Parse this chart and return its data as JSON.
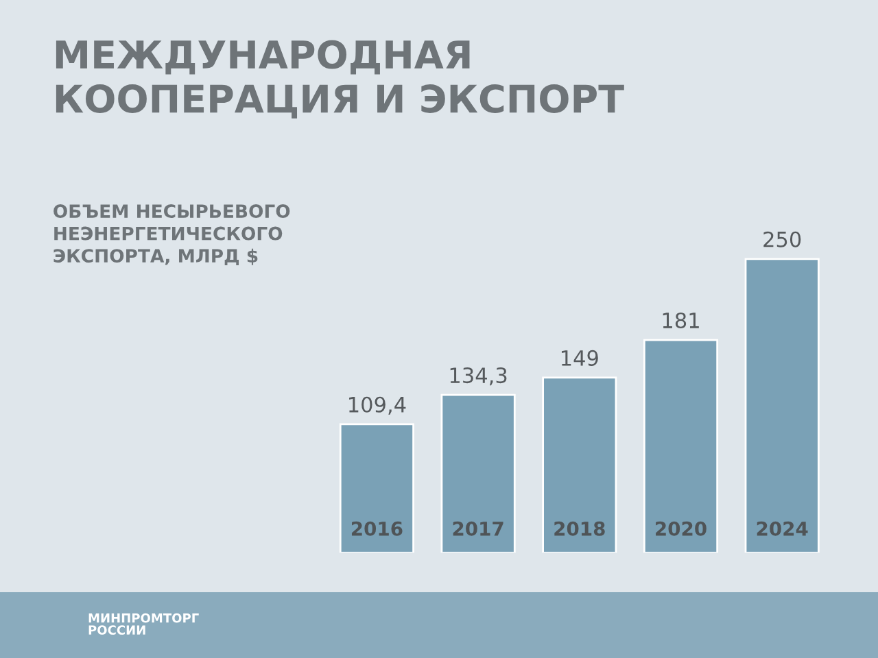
{
  "chart_data": {
    "type": "bar",
    "title": "МЕЖДУНАРОДНАЯ\nКООПЕРАЦИЯ И ЭКСПОРТ",
    "subtitle": "ОБЪЕМ НЕСЫРЬЕВОГО\nНЕЭНЕРГЕТИЧЕСКОГО\nЭКСПОРТА, МЛРД $",
    "categories": [
      "2016",
      "2017",
      "2018",
      "2020",
      "2024"
    ],
    "values": [
      109.4,
      134.3,
      149,
      181,
      250
    ],
    "value_labels": [
      "109,4",
      "134,3",
      "149",
      "181",
      "250"
    ],
    "color": "#7aa1b6",
    "annotations": [
      "МИНПРОМТОРГ\nРОССИИ"
    ]
  }
}
